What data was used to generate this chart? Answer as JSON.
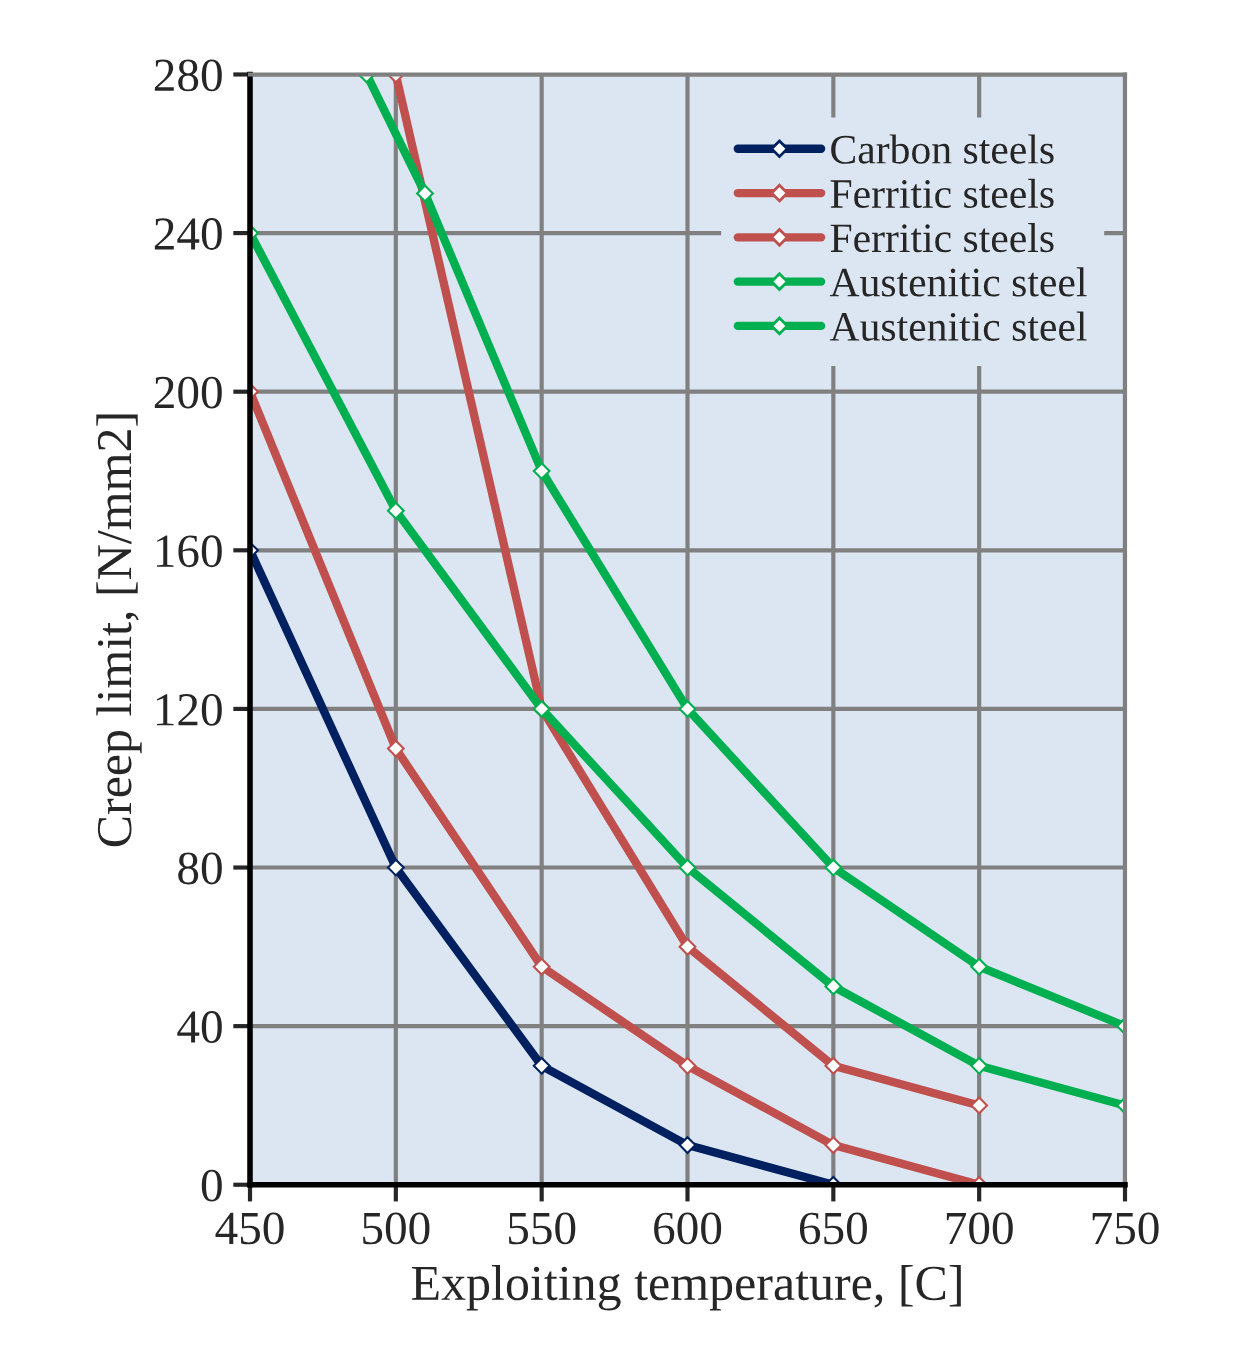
{
  "chart_data": {
    "type": "line",
    "xlabel": "Exploiting temperature, [C]",
    "ylabel": "Creep limit, [N/mm2]",
    "xlim": [
      450,
      750
    ],
    "xticks": [
      450,
      500,
      550,
      600,
      650,
      700,
      750
    ],
    "ylim": [
      0,
      280
    ],
    "yticks": [
      0,
      40,
      80,
      120,
      160,
      200,
      240,
      280
    ],
    "grid": true,
    "legend": "top right",
    "marker": "diamond",
    "line_style": "solid",
    "series": [
      {
        "name": "Carbon steels",
        "color": "#002060",
        "x": [
          450,
          500,
          550,
          600,
          650
        ],
        "values": [
          160,
          80,
          30,
          10,
          0
        ]
      },
      {
        "name": "Ferritic steels",
        "color": "#c0504d",
        "x": [
          450,
          500,
          550,
          600,
          650,
          700
        ],
        "values": [
          200,
          110,
          55,
          30,
          10,
          0
        ]
      },
      {
        "name": "Ferritic steels",
        "color": "#c0504d",
        "x": [
          500,
          550,
          600,
          650,
          700
        ],
        "values": [
          280,
          120,
          60,
          30,
          20
        ]
      },
      {
        "name": "Austenitic steel",
        "color": "#00b050",
        "x": [
          450,
          500,
          550,
          600,
          650,
          700,
          750
        ],
        "values": [
          240,
          170,
          120,
          80,
          50,
          30,
          20
        ]
      },
      {
        "name": "Austenitic steel",
        "color": "#00b050",
        "x": [
          490,
          510,
          550,
          600,
          650,
          700,
          750
        ],
        "values": [
          280,
          250,
          180,
          120,
          80,
          55,
          40
        ]
      }
    ]
  }
}
